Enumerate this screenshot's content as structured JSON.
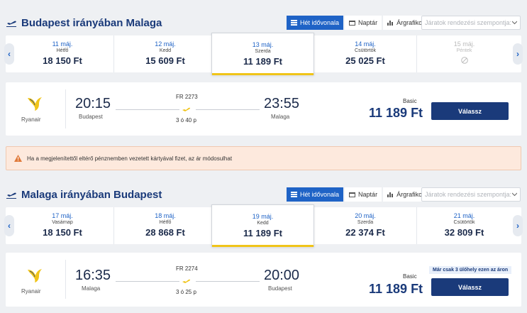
{
  "outbound": {
    "title": "Budapest irányában Malaga",
    "tabs": {
      "timeline": "Hét idővonala",
      "calendar": "Naptár",
      "chart": "Árgrafikon"
    },
    "sort_placeholder": "Járatok rendezési szempontja:",
    "dates": [
      {
        "date": "11 máj.",
        "weekday": "Hétfő",
        "price": "18 150 Ft"
      },
      {
        "date": "12 máj.",
        "weekday": "Kedd",
        "price": "15 609 Ft"
      },
      {
        "date": "13 máj.",
        "weekday": "Szerda",
        "price": "11 189 Ft",
        "selected": true
      },
      {
        "date": "14 máj.",
        "weekday": "Csütörtök",
        "price": "25 025 Ft"
      },
      {
        "date": "15 máj.",
        "weekday": "Péntek",
        "price": "",
        "disabled": true
      }
    ],
    "flight": {
      "airline": "Ryanair",
      "departure_time": "20:15",
      "departure_city": "Budapest",
      "flight_number": "FR 2273",
      "duration": "3 ó 40 p",
      "arrival_time": "23:55",
      "arrival_city": "Malaga",
      "fare_class": "Basic",
      "price": "11 189 Ft",
      "select_label": "Válassz"
    }
  },
  "notice": {
    "text": "Ha a megjelenítettől eltérő pénznemben vezetett kártyával fizet, az ár módosulhat"
  },
  "return": {
    "title": "Malaga irányában Budapest",
    "tabs": {
      "timeline": "Hét idővonala",
      "calendar": "Naptár",
      "chart": "Árgrafikon"
    },
    "sort_placeholder": "Járatok rendezési szempontja:",
    "dates": [
      {
        "date": "17 máj.",
        "weekday": "Vasárnap",
        "price": "18 150 Ft"
      },
      {
        "date": "18 máj.",
        "weekday": "Hétfő",
        "price": "28 868 Ft"
      },
      {
        "date": "19 máj.",
        "weekday": "Kedd",
        "price": "11 189 Ft",
        "selected": true
      },
      {
        "date": "20 máj.",
        "weekday": "Szerda",
        "price": "22 374 Ft"
      },
      {
        "date": "21 máj.",
        "weekday": "Csütörtök",
        "price": "32 809 Ft"
      }
    ],
    "flight": {
      "airline": "Ryanair",
      "departure_time": "16:35",
      "departure_city": "Malaga",
      "flight_number": "FR 2274",
      "duration": "3 ó 25 p",
      "arrival_time": "20:00",
      "arrival_city": "Budapest",
      "fare_class": "Basic",
      "price": "11 189 Ft",
      "select_label": "Válassz",
      "seats_left": "Már csak 3 ülőhely ezen az áron"
    }
  },
  "colors": {
    "brand": "#1a3a7a",
    "accent": "#1f63c6",
    "highlight": "#f0c419",
    "notice_bg": "#fde9dd"
  }
}
